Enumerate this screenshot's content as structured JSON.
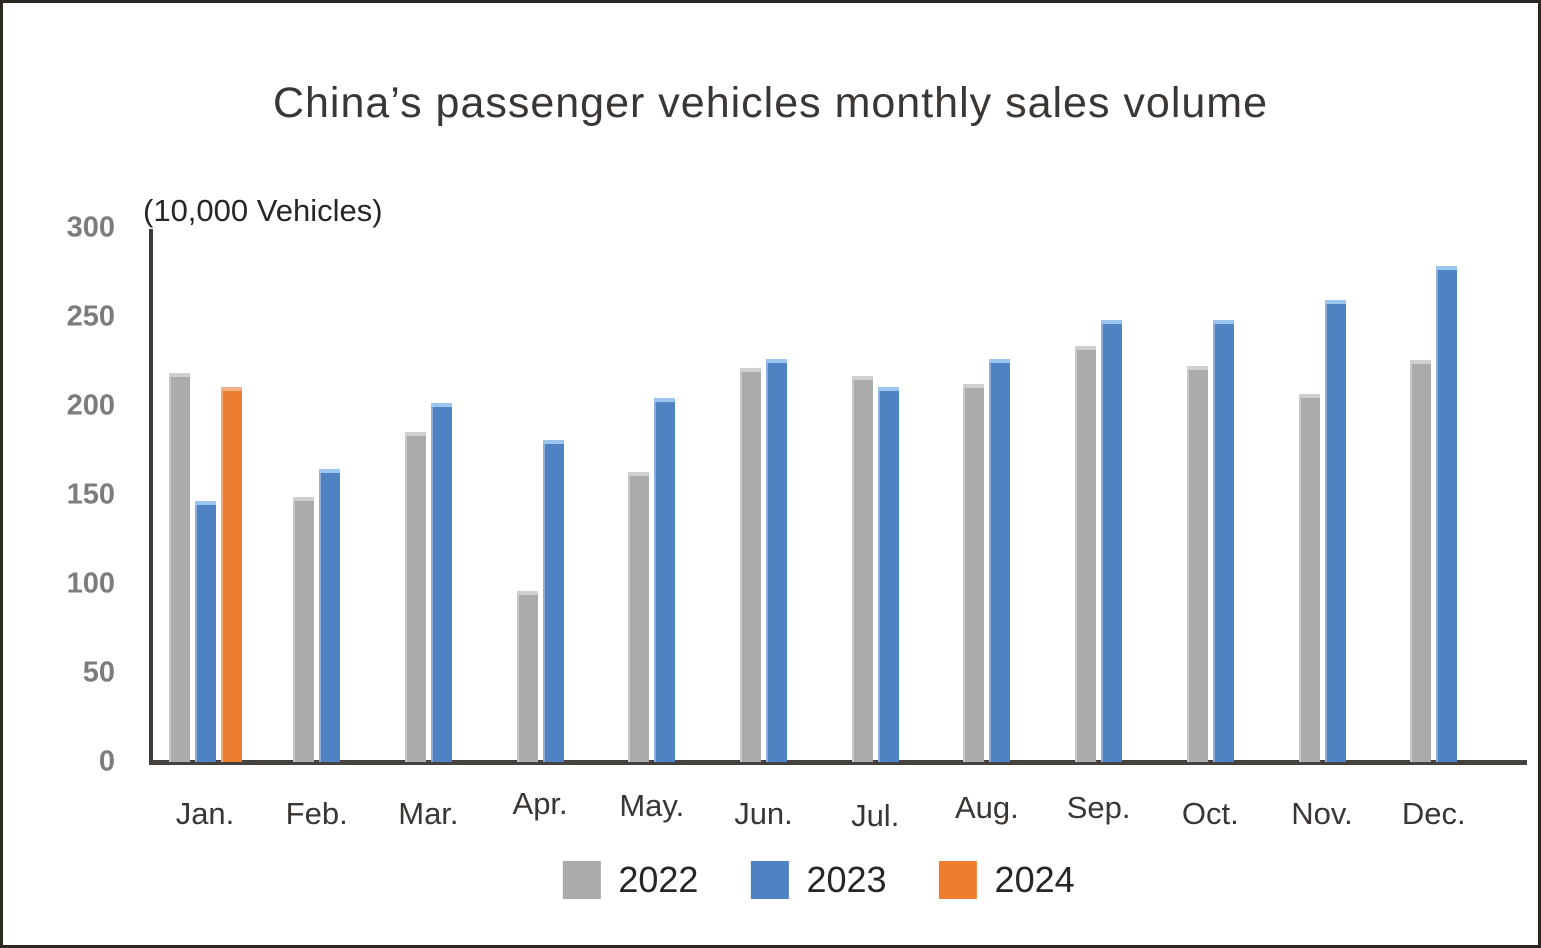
{
  "title": {
    "text": "China’s passenger vehicles monthly sales volume",
    "color": "#3a3633"
  },
  "unit_label": {
    "text": "(10,000 Vehicles)",
    "color": "#262626"
  },
  "y_axis": {
    "tick_labels": [
      "300",
      "250",
      "200",
      "150",
      "100",
      "50",
      "0"
    ],
    "axis_color": "#3d3a38",
    "label_color": "#7c7c7c"
  },
  "x_axis": {
    "label_color": "#3a3633"
  },
  "legend": {
    "position": "bottom",
    "items": [
      {
        "label": "2022",
        "color": "#ABABAB"
      },
      {
        "label": "2023",
        "color": "#4E82C2"
      },
      {
        "label": "2024",
        "color": "#ED7D31"
      }
    ]
  },
  "chart_data": {
    "type": "bar",
    "title": "China’s passenger vehicles monthly sales volume",
    "ylabel": "(10,000 Vehicles)",
    "xlabel": "",
    "categories": [
      "Jan.",
      "Feb.",
      "Mar.",
      "Apr.",
      "May.",
      "Jun.",
      "Jul.",
      "Aug.",
      "Sep.",
      "Oct.",
      "Nov.",
      "Dec."
    ],
    "series": [
      {
        "name": "2022",
        "color": "#ABABAB",
        "cap_color": "#CFCFCF",
        "values": [
          219,
          149,
          186,
          96,
          163,
          222,
          217,
          213,
          234,
          223,
          207,
          226
        ]
      },
      {
        "name": "2023",
        "color": "#4E82C2",
        "cap_color": "#9DC6EE",
        "values": [
          147,
          165,
          202,
          181,
          205,
          227,
          211,
          227,
          249,
          249,
          260,
          279
        ]
      },
      {
        "name": "2024",
        "color": "#ED7D31",
        "cap_color": "#F6B183",
        "values": [
          211,
          null,
          null,
          null,
          null,
          null,
          null,
          null,
          null,
          null,
          null,
          null
        ]
      }
    ],
    "ylim": [
      0,
      300
    ],
    "y_ticks": [
      0,
      50,
      100,
      150,
      200,
      250,
      300
    ],
    "grid": false,
    "legend_position": "bottom"
  }
}
